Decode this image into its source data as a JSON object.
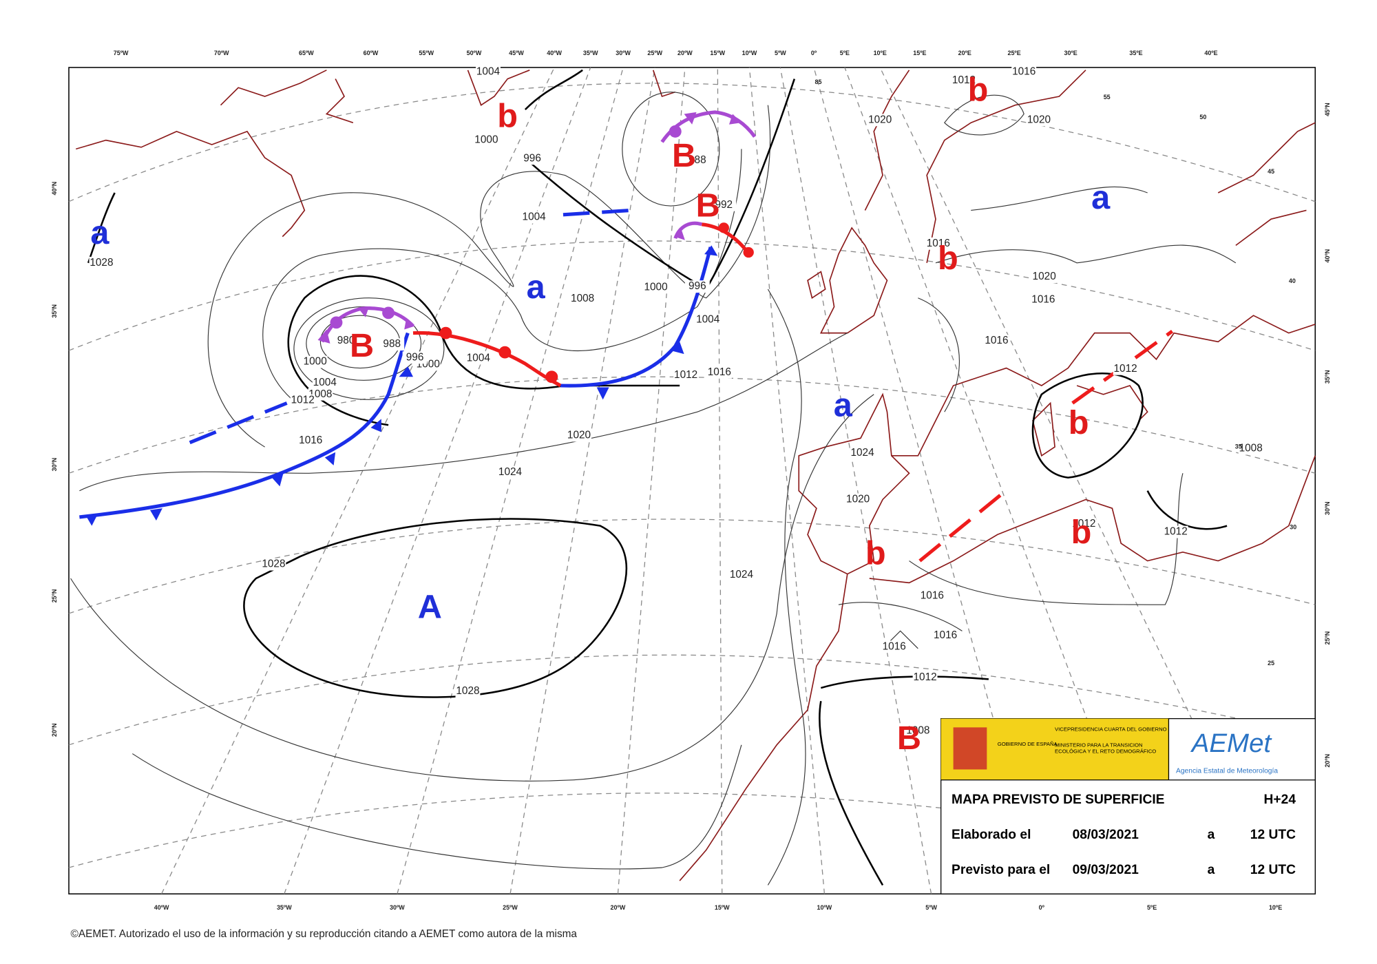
{
  "map": {
    "top_longitudes": [
      "75ºW",
      "70ºW",
      "65ºW",
      "60ºW",
      "55ºW",
      "50ºW",
      "45ºW",
      "40ºW",
      "35ºW",
      "30ºW",
      "25ºW",
      "20ºW",
      "15ºW",
      "10ºW",
      "5ºW",
      "0º",
      "5ºE",
      "10ºE",
      "15ºE",
      "20ºE",
      "25ºE",
      "30ºE",
      "35ºE",
      "40ºE"
    ],
    "bottom_longitudes": [
      "40ºW",
      "35ºW",
      "30ºW",
      "25ºW",
      "20ºW",
      "15ºW",
      "10ºW",
      "5ºW",
      "0º",
      "5ºE",
      "10ºE"
    ],
    "left_latitudes": [
      "40ºN",
      "35ºN",
      "30ºN",
      "25ºN",
      "20ºN"
    ],
    "right_latitudes": [
      "45ºN",
      "40ºN",
      "35ºN",
      "30ºN",
      "25ºN",
      "20ºN"
    ],
    "pressure_centers": [
      {
        "label": "a",
        "color": "#1f2fd8"
      },
      {
        "label": "b",
        "color": "#e01b1b"
      },
      {
        "label": "B",
        "color": "#e01b1b"
      },
      {
        "label": "B",
        "color": "#e01b1b"
      },
      {
        "label": "a",
        "color": "#1f2fd8"
      },
      {
        "label": "B",
        "color": "#e01b1b"
      },
      {
        "label": "a",
        "color": "#1f2fd8"
      },
      {
        "label": "A",
        "color": "#1f2fd8"
      },
      {
        "label": "b",
        "color": "#e01b1b"
      },
      {
        "label": "a",
        "color": "#1f2fd8"
      },
      {
        "label": "b",
        "color": "#e01b1b"
      },
      {
        "label": "b",
        "color": "#e01b1b"
      },
      {
        "label": "b",
        "color": "#e01b1b"
      },
      {
        "label": "b",
        "color": "#e01b1b"
      },
      {
        "label": "B",
        "color": "#e01b1b"
      }
    ],
    "isobar_labels": [
      "1028",
      "1004",
      "1000",
      "996",
      "1004",
      "1008",
      "1000",
      "996",
      "1004",
      "1012",
      "1016",
      "1004",
      "1000",
      "996",
      "988",
      "980",
      "1000",
      "1004",
      "1008",
      "1012",
      "1016",
      "1020",
      "1024",
      "1028",
      "1028",
      "1024",
      "1024",
      "1020",
      "1016",
      "1016",
      "1016",
      "1012",
      "1008",
      "1012",
      "1012",
      "1012",
      "1016",
      "1016",
      "1020",
      "1016",
      "1020",
      "1020",
      "1012",
      "1016",
      "1008",
      "992",
      "988"
    ],
    "grid_labels": [
      "85",
      "55",
      "50",
      "45",
      "40",
      "35",
      "30",
      "25"
    ]
  },
  "info_box": {
    "gobierno": "GOBIERNO DE ESPAÑA",
    "vicepresidencia": "VICEPRESIDENCIA CUARTA DEL GOBIERNO",
    "ministerio": "MINISTERIO PARA LA TRANSICIÓN ECOLÓGICA Y EL RETO DEMOGRÁFICO",
    "logo": "AEMet",
    "agency": "Agencia Estatal de Meteorología",
    "rows": [
      [
        "MAPA PREVISTO DE SUPERFICIE",
        "H+24"
      ],
      [
        "Elaborado el",
        "08/03/2021",
        "a",
        "12 UTC"
      ],
      [
        "Previsto para el",
        "09/03/2021",
        "a",
        "12 UTC"
      ]
    ]
  },
  "footer": "©AEMET. Autorizado el uso de la información y su reproducción citando a AEMET como autora de la misma"
}
